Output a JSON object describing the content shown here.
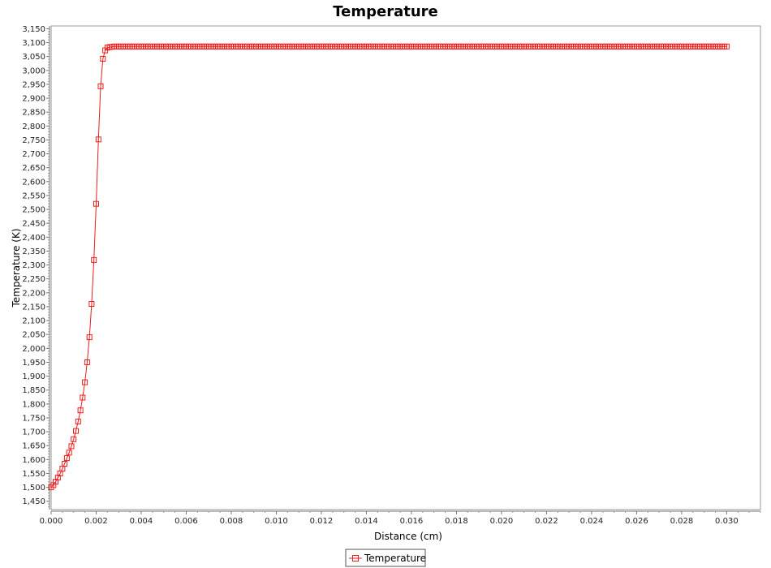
{
  "chart_data": {
    "type": "line",
    "title": "Temperature",
    "xlabel": "Distance (cm)",
    "ylabel": "Temperature (K)",
    "xlim": [
      0.0,
      0.0315
    ],
    "ylim": [
      1420,
      3160
    ],
    "x_ticks": [
      "0.000",
      "0.002",
      "0.004",
      "0.006",
      "0.008",
      "0.010",
      "0.012",
      "0.014",
      "0.016",
      "0.018",
      "0.020",
      "0.022",
      "0.024",
      "0.026",
      "0.028",
      "0.030"
    ],
    "y_ticks": [
      "1,450",
      "1,500",
      "1,550",
      "1,600",
      "1,650",
      "1,700",
      "1,750",
      "1,800",
      "1,850",
      "1,900",
      "1,950",
      "2,000",
      "2,050",
      "2,100",
      "2,150",
      "2,200",
      "2,250",
      "2,300",
      "2,350",
      "2,400",
      "2,450",
      "2,500",
      "2,550",
      "2,600",
      "2,650",
      "2,700",
      "2,750",
      "2,800",
      "2,850",
      "2,900",
      "2,950",
      "3,000",
      "3,050",
      "3,100",
      "3,150"
    ],
    "grid": false,
    "legend": "bottom-center",
    "series": [
      {
        "name": "Temperature",
        "color": "#ee1c1c",
        "marker": "square-outline",
        "x": [
          0.0,
          0.0001,
          0.0002,
          0.0003,
          0.0004,
          0.0005,
          0.0006,
          0.0007,
          0.0008,
          0.0009,
          0.001,
          0.0011,
          0.0012,
          0.0013,
          0.0014,
          0.0015,
          0.0016,
          0.0017,
          0.0018,
          0.0019,
          0.002,
          0.0021,
          0.0022,
          0.0023,
          0.0024,
          0.0025,
          0.0026,
          0.0027,
          0.0028,
          0.0029,
          0.003
        ],
        "y": [
          1500,
          1508,
          1520,
          1535,
          1550,
          1567,
          1585,
          1605,
          1625,
          1648,
          1673,
          1703,
          1737,
          1777,
          1823,
          1878,
          1950,
          2040,
          2160,
          2318,
          2520,
          2752,
          2943,
          3042,
          3072,
          3082,
          3084,
          3085,
          3086,
          3086,
          3086
        ],
        "plateau": {
          "x_start": 0.003,
          "x_end": 0.03,
          "step": 0.0001,
          "y": 3086
        }
      }
    ]
  }
}
